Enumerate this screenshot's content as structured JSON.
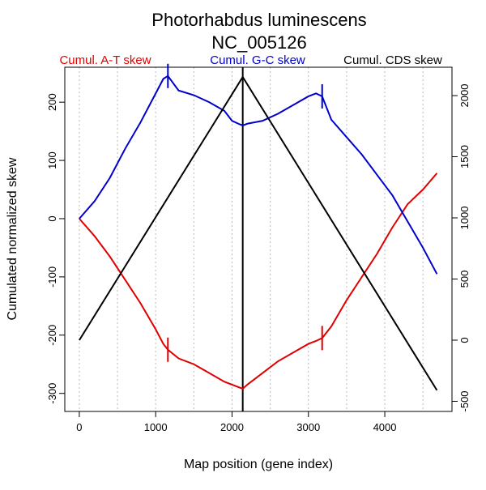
{
  "chart_data": {
    "type": "line",
    "title": "Photorhabdus luminescens",
    "subtitle": "NC_005126",
    "x_label": "Map position (gene index)",
    "y_label": "Cumulated normalized skew",
    "x": [
      0,
      200,
      400,
      600,
      800,
      1000,
      1100,
      1160,
      1300,
      1500,
      1700,
      1900,
      2000,
      2100,
      2140,
      2200,
      2400,
      2600,
      2800,
      3000,
      3100,
      3180,
      3300,
      3500,
      3700,
      3900,
      4100,
      4300,
      4500,
      4683
    ],
    "series": [
      {
        "name": "Cumul. A-T skew",
        "color": "#e00000",
        "values": [
          0,
          -30,
          -65,
          -105,
          -145,
          -190,
          -215,
          -225,
          -240,
          -250,
          -265,
          -280,
          -285,
          -290,
          -292,
          -285,
          -265,
          -245,
          -230,
          -215,
          -210,
          -205,
          -185,
          -140,
          -100,
          -60,
          -15,
          25,
          50,
          78
        ]
      },
      {
        "name": "Cumul. G-C skew",
        "color": "#0000cc",
        "values": [
          0,
          30,
          70,
          120,
          165,
          215,
          240,
          245,
          220,
          212,
          200,
          185,
          168,
          162,
          160,
          163,
          168,
          180,
          195,
          210,
          215,
          210,
          170,
          140,
          110,
          75,
          40,
          -5,
          -50,
          -95
        ]
      },
      {
        "name": "Cumul. CDS skew",
        "color": "#000000",
        "axis": "y2",
        "x": [
          0,
          2140,
          4683
        ],
        "values": [
          0,
          2152,
          -410
        ]
      }
    ],
    "marks_x": [
      1160,
      3180
    ],
    "vline": 2140,
    "xgrid": [
      0,
      500,
      1000,
      1500,
      2000,
      2500,
      3000,
      3500,
      4000,
      4500
    ],
    "xlim": [
      -190,
      4880
    ],
    "xticks": [
      0,
      1000,
      2000,
      3000,
      4000
    ],
    "ylim": [
      -331,
      260
    ],
    "yticks": [
      -300,
      -200,
      -100,
      0,
      100,
      200
    ],
    "y2lim": [
      -583,
      2232
    ],
    "y2ticks": [
      -500,
      0,
      500,
      1000,
      1500,
      2000
    ]
  }
}
